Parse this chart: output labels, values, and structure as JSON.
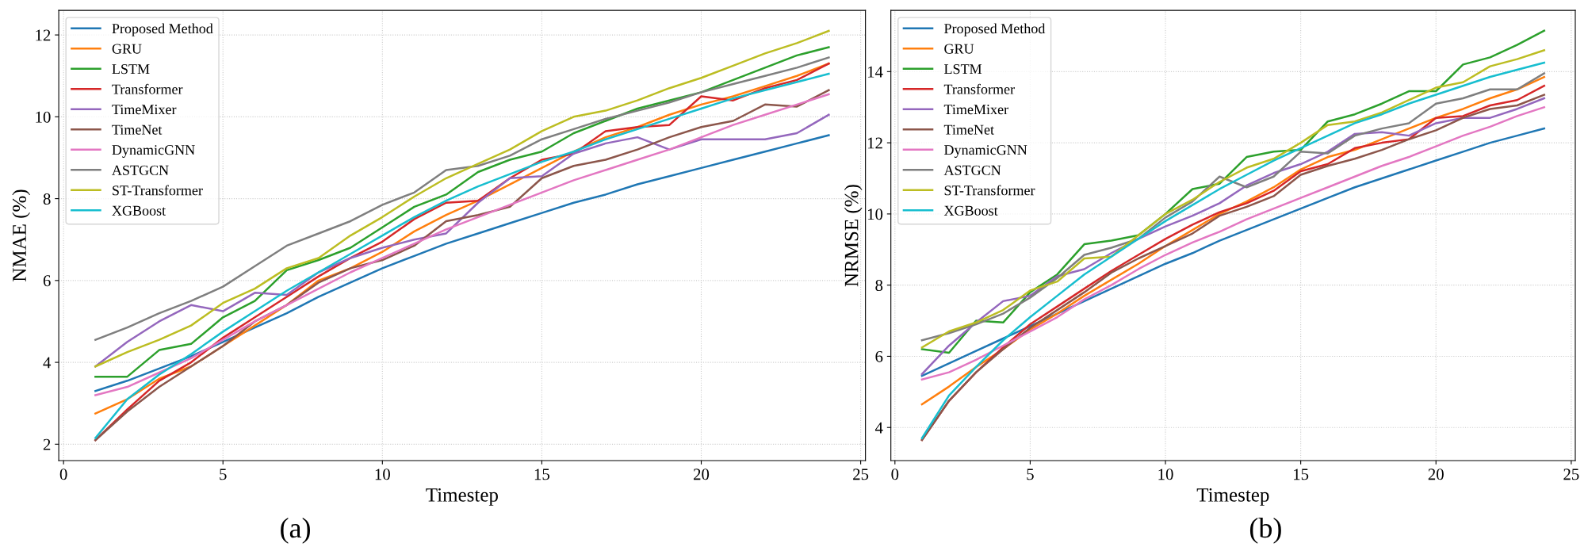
{
  "chart_data": [
    {
      "type": "line",
      "xlabel": "Timestep",
      "ylabel": "NMAE (%)",
      "annotations": [
        "(a)"
      ],
      "x": [
        1,
        2,
        3,
        4,
        5,
        6,
        7,
        8,
        9,
        10,
        11,
        12,
        13,
        14,
        15,
        16,
        17,
        18,
        19,
        20,
        21,
        22,
        23,
        24
      ],
      "xlim": [
        -0.15,
        25.15
      ],
      "xticks": [
        0,
        5,
        10,
        15,
        20,
        25
      ],
      "ylim": [
        1.6,
        12.6
      ],
      "yticks": [
        2,
        4,
        6,
        8,
        10,
        12
      ],
      "grid": true,
      "legend": "top left",
      "line_style": "solid",
      "marker": "none",
      "series": [
        {
          "name": "Proposed Method",
          "color": "#1f77b4",
          "values": [
            3.3,
            3.55,
            3.85,
            4.15,
            4.5,
            4.85,
            5.2,
            5.6,
            5.95,
            6.3,
            6.6,
            6.9,
            7.15,
            7.4,
            7.65,
            7.9,
            8.1,
            8.35,
            8.55,
            8.75,
            8.95,
            9.15,
            9.35,
            9.55
          ]
        },
        {
          "name": "GRU",
          "color": "#ff7f0e",
          "values": [
            2.75,
            3.1,
            3.6,
            3.9,
            4.4,
            4.9,
            5.4,
            6.0,
            6.3,
            6.7,
            7.2,
            7.6,
            7.95,
            8.35,
            8.75,
            9.15,
            9.5,
            9.75,
            10.05,
            10.3,
            10.5,
            10.75,
            11.0,
            11.3
          ]
        },
        {
          "name": "LSTM",
          "color": "#2ca02c",
          "values": [
            3.65,
            3.65,
            4.3,
            4.45,
            5.1,
            5.5,
            6.25,
            6.5,
            6.8,
            7.3,
            7.8,
            8.1,
            8.65,
            8.95,
            9.15,
            9.6,
            9.9,
            10.2,
            10.4,
            10.6,
            10.9,
            11.2,
            11.5,
            11.7
          ]
        },
        {
          "name": "Transformer",
          "color": "#d62728",
          "values": [
            2.1,
            2.85,
            3.55,
            4.0,
            4.6,
            5.1,
            5.6,
            6.1,
            6.55,
            6.95,
            7.5,
            7.9,
            7.95,
            8.5,
            8.95,
            9.1,
            9.65,
            9.75,
            9.8,
            10.5,
            10.4,
            10.7,
            10.9,
            11.3
          ]
        },
        {
          "name": "TimeMixer",
          "color": "#9467bd",
          "values": [
            3.9,
            4.5,
            5.0,
            5.4,
            5.25,
            5.7,
            5.65,
            6.2,
            6.55,
            6.8,
            7.0,
            7.15,
            7.9,
            8.5,
            8.55,
            9.1,
            9.35,
            9.5,
            9.2,
            9.45,
            9.45,
            9.45,
            9.6,
            10.05
          ]
        },
        {
          "name": "TimeNet",
          "color": "#8c564b",
          "values": [
            2.1,
            2.8,
            3.4,
            3.9,
            4.4,
            5.0,
            5.4,
            5.95,
            6.3,
            6.5,
            6.85,
            7.45,
            7.6,
            7.8,
            8.5,
            8.8,
            8.95,
            9.2,
            9.5,
            9.75,
            9.9,
            10.3,
            10.25,
            10.65
          ]
        },
        {
          "name": "DynamicGNN",
          "color": "#e377c2",
          "values": [
            3.2,
            3.4,
            3.75,
            4.1,
            4.55,
            5.0,
            5.4,
            5.8,
            6.2,
            6.55,
            6.9,
            7.25,
            7.55,
            7.85,
            8.15,
            8.45,
            8.7,
            8.95,
            9.2,
            9.5,
            9.8,
            10.05,
            10.3,
            10.55
          ]
        },
        {
          "name": "ASTGCN",
          "color": "#7f7f7f",
          "values": [
            4.55,
            4.85,
            5.2,
            5.5,
            5.85,
            6.35,
            6.85,
            7.15,
            7.45,
            7.85,
            8.15,
            8.7,
            8.8,
            9.05,
            9.45,
            9.7,
            9.95,
            10.15,
            10.35,
            10.6,
            10.8,
            11.0,
            11.2,
            11.45
          ]
        },
        {
          "name": "ST-Transformer",
          "color": "#bcbd22",
          "values": [
            3.9,
            4.25,
            4.55,
            4.9,
            5.45,
            5.8,
            6.3,
            6.55,
            7.1,
            7.55,
            8.05,
            8.5,
            8.85,
            9.2,
            9.65,
            10.0,
            10.15,
            10.4,
            10.7,
            10.95,
            11.25,
            11.55,
            11.8,
            12.1
          ]
        },
        {
          "name": "XGBoost",
          "color": "#17becf",
          "values": [
            2.15,
            3.1,
            3.7,
            4.2,
            4.75,
            5.25,
            5.75,
            6.2,
            6.65,
            7.1,
            7.55,
            7.95,
            8.3,
            8.6,
            8.9,
            9.15,
            9.45,
            9.7,
            9.95,
            10.2,
            10.45,
            10.65,
            10.85,
            11.05
          ]
        }
      ]
    },
    {
      "type": "line",
      "xlabel": "Timestep",
      "ylabel": "NRMSE (%)",
      "annotations": [
        "(b)"
      ],
      "x": [
        1,
        2,
        3,
        4,
        5,
        6,
        7,
        8,
        9,
        10,
        11,
        12,
        13,
        14,
        15,
        16,
        17,
        18,
        19,
        20,
        21,
        22,
        23,
        24
      ],
      "xlim": [
        -0.15,
        25.15
      ],
      "xticks": [
        0,
        5,
        10,
        15,
        20,
        25
      ],
      "ylim": [
        3.07,
        15.72
      ],
      "yticks": [
        4,
        6,
        8,
        10,
        12,
        14
      ],
      "grid": true,
      "legend": "top left",
      "line_style": "solid",
      "marker": "none",
      "series": [
        {
          "name": "Proposed Method",
          "color": "#1f77b4",
          "values": [
            5.45,
            5.8,
            6.15,
            6.5,
            6.85,
            7.2,
            7.55,
            7.9,
            8.25,
            8.6,
            8.9,
            9.25,
            9.55,
            9.85,
            10.15,
            10.45,
            10.75,
            11.0,
            11.25,
            11.5,
            11.75,
            12.0,
            12.2,
            12.4
          ]
        },
        {
          "name": "GRU",
          "color": "#ff7f0e",
          "values": [
            4.65,
            5.15,
            5.7,
            6.2,
            6.75,
            7.2,
            7.7,
            8.15,
            8.6,
            9.1,
            9.55,
            10.0,
            10.35,
            10.75,
            11.25,
            11.6,
            11.8,
            12.1,
            12.4,
            12.7,
            12.95,
            13.25,
            13.5,
            13.85
          ]
        },
        {
          "name": "LSTM",
          "color": "#2ca02c",
          "values": [
            6.2,
            6.1,
            7.0,
            6.95,
            7.8,
            8.3,
            9.15,
            9.25,
            9.4,
            10.0,
            10.7,
            10.85,
            11.6,
            11.75,
            11.8,
            12.6,
            12.8,
            13.1,
            13.45,
            13.45,
            14.2,
            14.4,
            14.75,
            15.15
          ]
        },
        {
          "name": "Transformer",
          "color": "#d62728",
          "values": [
            3.65,
            4.75,
            5.55,
            6.25,
            6.9,
            7.4,
            7.9,
            8.4,
            8.85,
            9.3,
            9.7,
            10.05,
            10.3,
            10.65,
            11.2,
            11.4,
            11.85,
            12.0,
            12.1,
            12.7,
            12.75,
            13.05,
            13.2,
            13.6
          ]
        },
        {
          "name": "TimeMixer",
          "color": "#9467bd",
          "values": [
            5.5,
            6.3,
            6.95,
            7.55,
            7.7,
            8.25,
            8.45,
            8.9,
            9.3,
            9.65,
            9.95,
            10.3,
            10.8,
            11.15,
            11.4,
            11.75,
            12.25,
            12.3,
            12.2,
            12.55,
            12.7,
            12.7,
            12.95,
            13.25
          ]
        },
        {
          "name": "TimeNet",
          "color": "#8c564b",
          "values": [
            3.65,
            4.75,
            5.55,
            6.2,
            6.8,
            7.3,
            7.8,
            8.35,
            8.75,
            9.1,
            9.45,
            9.95,
            10.2,
            10.5,
            11.1,
            11.35,
            11.55,
            11.8,
            12.1,
            12.35,
            12.7,
            12.95,
            13.05,
            13.35
          ]
        },
        {
          "name": "DynamicGNN",
          "color": "#e377c2",
          "values": [
            5.35,
            5.55,
            5.9,
            6.3,
            6.7,
            7.1,
            7.6,
            8.0,
            8.45,
            8.85,
            9.2,
            9.5,
            9.85,
            10.15,
            10.45,
            10.75,
            11.05,
            11.35,
            11.6,
            11.9,
            12.2,
            12.45,
            12.75,
            13.0
          ]
        },
        {
          "name": "ASTGCN",
          "color": "#7f7f7f",
          "values": [
            6.45,
            6.65,
            6.9,
            7.2,
            7.65,
            8.2,
            8.85,
            9.05,
            9.3,
            9.9,
            10.35,
            11.05,
            10.75,
            11.05,
            11.75,
            11.7,
            12.2,
            12.4,
            12.55,
            13.1,
            13.25,
            13.5,
            13.5,
            13.95
          ]
        },
        {
          "name": "ST-Transformer",
          "color": "#bcbd22",
          "values": [
            6.25,
            6.7,
            6.95,
            7.3,
            7.85,
            8.1,
            8.75,
            8.8,
            9.4,
            10.0,
            10.4,
            10.9,
            11.3,
            11.55,
            12.0,
            12.5,
            12.6,
            12.85,
            13.2,
            13.55,
            13.7,
            14.15,
            14.35,
            14.6
          ]
        },
        {
          "name": "XGBoost",
          "color": "#17becf",
          "values": [
            3.7,
            4.9,
            5.7,
            6.45,
            7.1,
            7.7,
            8.3,
            8.8,
            9.3,
            9.8,
            10.25,
            10.7,
            11.1,
            11.5,
            11.85,
            12.2,
            12.55,
            12.8,
            13.1,
            13.35,
            13.6,
            13.85,
            14.05,
            14.25
          ]
        }
      ]
    }
  ]
}
